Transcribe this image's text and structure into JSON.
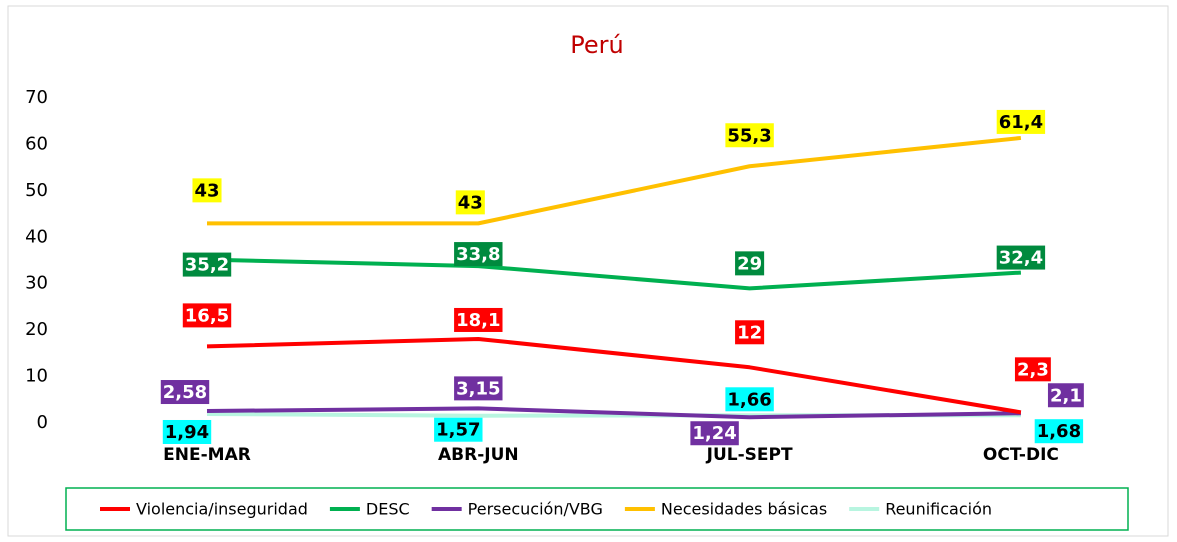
{
  "chart_data": {
    "type": "line",
    "title": "Perú",
    "categories": [
      "ENE-MAR",
      "ABR-JUN",
      "JUL-SEPT",
      "OCT-DIC"
    ],
    "ylim": [
      0,
      70
    ],
    "yticks": [
      0,
      10,
      20,
      30,
      40,
      50,
      60,
      70
    ],
    "grid": false,
    "legend": "bottom",
    "series": [
      {
        "name": "Violencia/inseguridad",
        "color": "#ff0000",
        "values": [
          16.5,
          18.1,
          12,
          2.3
        ],
        "value_labels": [
          "16,5",
          "18,1",
          "12",
          "2,3"
        ]
      },
      {
        "name": "DESC",
        "color": "#00b050",
        "values": [
          35.2,
          33.8,
          29,
          32.4
        ],
        "value_labels": [
          "35,2",
          "33,8",
          "29",
          "32,4"
        ]
      },
      {
        "name": "Persecución/VBG",
        "color": "#7030a0",
        "values": [
          2.58,
          3.15,
          1.24,
          2.1
        ],
        "value_labels": [
          "2,58",
          "3,15",
          "1,24",
          "2,1"
        ]
      },
      {
        "name": "Necesidades básicas",
        "color": "#ffc000",
        "values": [
          43,
          43,
          55.3,
          61.4
        ],
        "value_labels": [
          "43",
          "43",
          "55,3",
          "61,4"
        ]
      },
      {
        "name": "Reunificación",
        "color": "#b8f5e0",
        "values": [
          1.94,
          1.57,
          1.66,
          1.68
        ],
        "value_labels": [
          "1,94",
          "1,57",
          "1,66",
          "1,68"
        ]
      }
    ]
  }
}
